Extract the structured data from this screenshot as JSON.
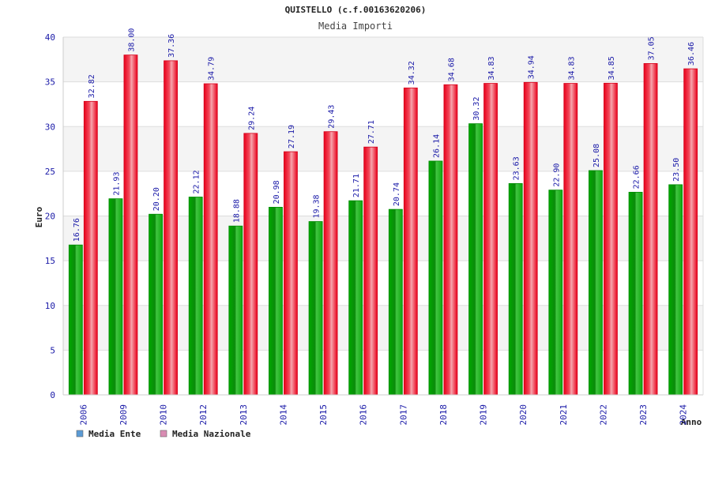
{
  "chart_data": {
    "type": "bar",
    "title": "QUISTELLO (c.f.00163620206)",
    "subtitle": "Media Importi",
    "xlabel": "Anno",
    "ylabel": "Euro",
    "ylim": [
      0,
      40
    ],
    "yticks": [
      0,
      5,
      10,
      15,
      20,
      25,
      30,
      35,
      40
    ],
    "grid": true,
    "legend_position": "bottom-left",
    "categories": [
      "2006",
      "2009",
      "2010",
      "2012",
      "2013",
      "2014",
      "2015",
      "2016",
      "2017",
      "2018",
      "2019",
      "2020",
      "2021",
      "2022",
      "2023",
      "2024"
    ],
    "series": [
      {
        "name": "Media Ente",
        "color": "#00a000",
        "legend_color": "#5b9bd5",
        "values": [
          16.76,
          21.93,
          20.2,
          22.12,
          18.88,
          20.98,
          19.38,
          21.71,
          20.74,
          26.14,
          30.32,
          23.63,
          22.9,
          25.08,
          22.66,
          23.5
        ],
        "labels": [
          "16.76",
          "21.93",
          "20.20",
          "22.12",
          "18.88",
          "20.98",
          "19.38",
          "21.71",
          "20.74",
          "26.14",
          "30.32",
          "23.63",
          "22.90",
          "25.08",
          "22.66",
          "23.50"
        ]
      },
      {
        "name": "Media Nazionale",
        "color": "#e8001a",
        "legend_color": "#d98cb3",
        "values": [
          32.82,
          38.0,
          37.36,
          34.79,
          29.24,
          27.19,
          29.43,
          27.71,
          34.32,
          34.68,
          34.83,
          34.94,
          34.83,
          34.85,
          37.05,
          36.46
        ],
        "labels": [
          "32.82",
          "38.00",
          "37.36",
          "34.79",
          "29.24",
          "27.19",
          "29.43",
          "27.71",
          "34.32",
          "34.68",
          "34.83",
          "34.94",
          "34.83",
          "34.85",
          "37.05",
          "36.46"
        ]
      }
    ]
  }
}
